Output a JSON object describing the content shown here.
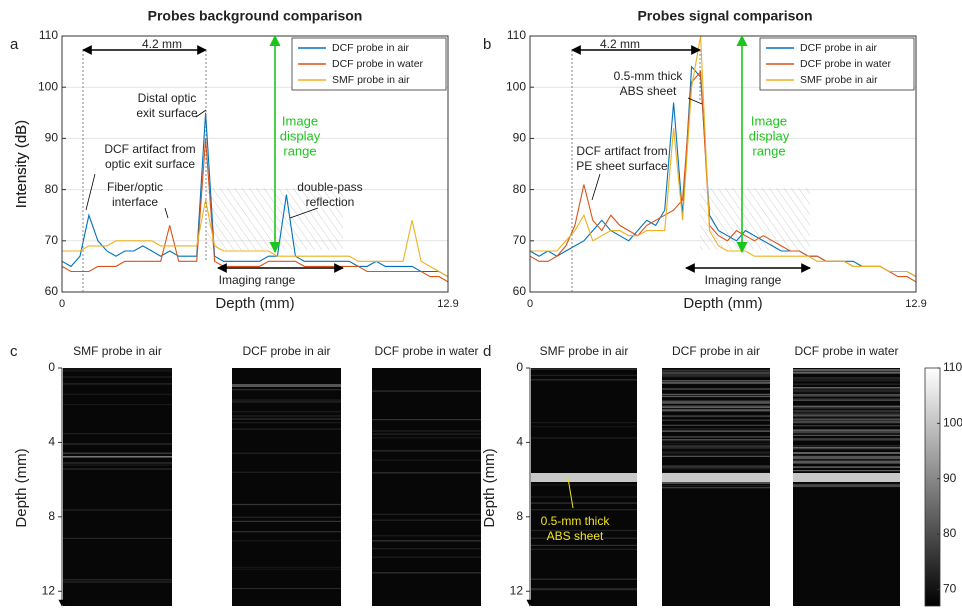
{
  "chart_data": [
    {
      "type": "line",
      "panel_label": "a",
      "title": "Probes background comparison",
      "x_label": "Depth (mm)",
      "y_label": "Intensity (dB)",
      "xlim": [
        0,
        12.9
      ],
      "xticks": [
        0,
        12.9
      ],
      "ylim": [
        60,
        110
      ],
      "yticks": [
        60,
        70,
        80,
        90,
        100,
        110
      ],
      "grid": true,
      "legend": "upper right",
      "x": [
        0,
        0.3,
        0.6,
        0.9,
        1.2,
        1.5,
        1.8,
        2.1,
        2.4,
        2.7,
        3,
        3.3,
        3.6,
        3.9,
        4.2,
        4.5,
        4.8,
        5.1,
        5.4,
        5.7,
        6,
        6.3,
        6.6,
        6.9,
        7.2,
        7.5,
        7.8,
        8.1,
        8.4,
        8.7,
        9,
        9.3,
        9.6,
        9.9,
        10.2,
        10.5,
        10.8,
        11.1,
        11.4,
        11.7,
        12,
        12.3,
        12.6,
        12.9
      ],
      "series": [
        {
          "name": "DCF probe in air",
          "color": "#0072BD",
          "values": [
            66,
            65,
            67,
            75,
            70,
            68,
            67,
            68,
            68,
            69,
            68,
            67,
            68,
            67,
            67,
            67,
            95,
            67,
            66,
            66,
            66,
            66,
            66,
            67,
            67,
            79,
            67,
            66,
            66,
            66,
            66,
            66,
            66,
            65,
            65,
            66,
            65,
            65,
            65,
            65,
            64,
            64,
            64,
            63
          ]
        },
        {
          "name": "DCF probe in water",
          "color": "#D95319",
          "values": [
            65,
            64,
            64,
            64,
            65,
            65,
            65,
            66,
            66,
            66,
            66,
            66,
            73,
            66,
            66,
            66,
            90,
            66,
            65,
            65,
            65,
            65,
            65,
            66,
            66,
            66,
            66,
            65,
            65,
            65,
            65,
            65,
            65,
            65,
            64,
            64,
            64,
            64,
            64,
            64,
            64,
            63,
            63,
            62
          ]
        },
        {
          "name": "SMF probe in air",
          "color": "#EDB120",
          "values": [
            68,
            68,
            68,
            69,
            69,
            69,
            70,
            70,
            70,
            70,
            70,
            69,
            69,
            69,
            69,
            69,
            78,
            69,
            68,
            68,
            68,
            68,
            68,
            68,
            67,
            67,
            67,
            67,
            67,
            67,
            67,
            67,
            67,
            66,
            66,
            66,
            66,
            66,
            66,
            74,
            66,
            65,
            64,
            63
          ]
        }
      ],
      "annotations": [
        [
          "4.2 mm"
        ],
        [
          "Distal optic",
          "exit surface"
        ],
        [
          "DCF artifact from",
          "optic exit surface"
        ],
        [
          "Fiber/optic",
          "interface"
        ],
        [
          "Image",
          "display",
          "range"
        ],
        [
          "double-pass",
          "reflection"
        ],
        [
          "Imaging range"
        ]
      ]
    },
    {
      "type": "line",
      "panel_label": "b",
      "title": "Probes signal comparison",
      "x_label": "Depth (mm)",
      "y_label": "Intensity (dB)",
      "xlim": [
        0,
        12.9
      ],
      "xticks": [
        0,
        12.9
      ],
      "ylim": [
        60,
        110
      ],
      "yticks": [
        60,
        70,
        80,
        90,
        100,
        110
      ],
      "grid": true,
      "legend": "upper right",
      "x": [
        0,
        0.3,
        0.6,
        0.9,
        1.2,
        1.5,
        1.8,
        2.1,
        2.4,
        2.7,
        3,
        3.3,
        3.6,
        3.9,
        4.2,
        4.5,
        4.8,
        5.1,
        5.4,
        5.7,
        6,
        6.3,
        6.6,
        6.9,
        7.2,
        7.5,
        7.8,
        8.1,
        8.4,
        8.7,
        9,
        9.3,
        9.6,
        9.9,
        10.2,
        10.5,
        10.8,
        11.1,
        11.4,
        11.7,
        12,
        12.3,
        12.6,
        12.9
      ],
      "series": [
        {
          "name": "DCF probe in air",
          "color": "#0072BD",
          "values": [
            68,
            67,
            68,
            67,
            68,
            69,
            70,
            72,
            74,
            72,
            71,
            70,
            72,
            74,
            73,
            76,
            97,
            75,
            104,
            102,
            75,
            72,
            71,
            70,
            72,
            71,
            70,
            69,
            68,
            68,
            68,
            67,
            67,
            66,
            66,
            66,
            66,
            65,
            65,
            65,
            64,
            64,
            64,
            63
          ]
        },
        {
          "name": "DCF probe in water",
          "color": "#D95319",
          "values": [
            67,
            66,
            66,
            67,
            69,
            73,
            81,
            74,
            72,
            75,
            73,
            72,
            71,
            73,
            74,
            75,
            76,
            78,
            101,
            103,
            73,
            71,
            70,
            72,
            71,
            70,
            71,
            70,
            69,
            68,
            68,
            67,
            67,
            66,
            66,
            66,
            65,
            65,
            65,
            65,
            64,
            63,
            63,
            62
          ]
        },
        {
          "name": "SMF probe in air",
          "color": "#EDB120",
          "values": [
            68,
            68,
            68,
            68,
            70,
            72,
            75,
            70,
            71,
            72,
            72,
            71,
            71,
            72,
            72,
            72,
            92,
            74,
            100,
            110,
            72,
            69,
            68,
            68,
            68,
            67,
            67,
            67,
            67,
            67,
            67,
            67,
            66,
            66,
            66,
            66,
            65,
            65,
            65,
            65,
            64,
            64,
            64,
            63
          ]
        }
      ],
      "annotations": [
        [
          "4.2 mm"
        ],
        [
          "0.5-mm thick",
          "ABS sheet"
        ],
        [
          "DCF artifact from",
          "PE sheet surface"
        ],
        [
          "Image",
          "display",
          "range"
        ],
        [
          "Imaging range"
        ]
      ]
    },
    {
      "type": "image",
      "panel_label": "c",
      "panel_titles": [
        "SMF probe in air",
        "DCF probe in air",
        "DCF probe in water"
      ],
      "y_label": "Depth (mm)",
      "ylim": [
        0,
        12.9
      ],
      "yticks": [
        0,
        4,
        8,
        12
      ]
    },
    {
      "type": "image",
      "panel_label": "d",
      "panel_titles": [
        "SMF probe in air",
        "DCF probe in air",
        "DCF probe in water"
      ],
      "y_label": "Depth (mm)",
      "ylim": [
        0,
        12.9
      ],
      "yticks": [
        0,
        4,
        8,
        12
      ],
      "annotations": [
        [
          "0.5-mm thick",
          "ABS sheet"
        ]
      ],
      "clim": [
        67,
        110
      ],
      "colorbar_ticks": [
        70,
        80,
        90,
        100,
        110
      ]
    }
  ]
}
